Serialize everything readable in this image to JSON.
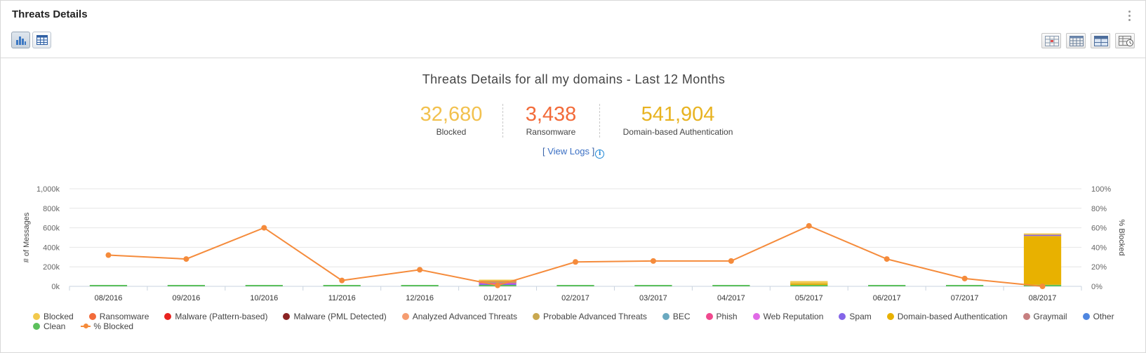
{
  "panel": {
    "title": "Threats Details"
  },
  "chart_header": {
    "title": "Threats Details for all my domains - Last 12 Months",
    "kpis": [
      {
        "value": "32,680",
        "label": "Blocked",
        "color": "#f2c14e"
      },
      {
        "value": "3,438",
        "label": "Ransomware",
        "color": "#f26b3a"
      },
      {
        "value": "541,904",
        "label": "Domain-based Authentication",
        "color": "#e8b321"
      }
    ],
    "view_logs": {
      "open": "[ ",
      "link": "View Logs",
      "close": " ]"
    }
  },
  "icons": {
    "view_chart": "bar-chart-icon",
    "view_table": "table-icon",
    "menu": "kebab-menu-icon",
    "layouts": [
      "layout-grid-icon",
      "layout-table-icon",
      "layout-wide-icon",
      "layout-history-icon"
    ]
  },
  "chart_data": {
    "type": "bar",
    "stacked": true,
    "categories": [
      "08/2016",
      "09/2016",
      "10/2016",
      "11/2016",
      "12/2016",
      "01/2017",
      "02/2017",
      "03/2017",
      "04/2017",
      "05/2017",
      "06/2017",
      "07/2017",
      "08/2017"
    ],
    "ylabel": "# of Messages",
    "ylabel_right": "% Blocked",
    "yticks": [
      "0k",
      "200k",
      "400k",
      "600k",
      "800k",
      "1,000k"
    ],
    "yticks_right": [
      "0%",
      "20%",
      "40%",
      "60%",
      "80%",
      "100%"
    ],
    "ylim": [
      0,
      1000000
    ],
    "ylim_right": [
      0,
      100
    ],
    "grid": true,
    "legend_position": "bottom",
    "series": [
      {
        "name": "Blocked",
        "color": "#f2c94c",
        "type": "bar",
        "values": [
          0,
          0,
          0,
          0,
          0,
          2000,
          0,
          0,
          0,
          24000,
          0,
          0,
          2000
        ]
      },
      {
        "name": "Ransomware",
        "color": "#f26b3a",
        "type": "bar",
        "values": [
          0,
          0,
          0,
          0,
          0,
          3000,
          0,
          0,
          0,
          0,
          0,
          0,
          0
        ]
      },
      {
        "name": "Malware (Pattern-based)",
        "color": "#e8231f",
        "type": "bar",
        "values": [
          0,
          0,
          0,
          0,
          0,
          1000,
          0,
          0,
          0,
          0,
          0,
          0,
          0
        ]
      },
      {
        "name": "Malware (PML Detected)",
        "color": "#8b2323",
        "type": "bar",
        "values": [
          0,
          0,
          0,
          0,
          0,
          0,
          0,
          0,
          0,
          0,
          0,
          0,
          0
        ]
      },
      {
        "name": "Analyzed Advanced Threats",
        "color": "#f59c70",
        "type": "bar",
        "values": [
          0,
          0,
          0,
          0,
          0,
          2000,
          0,
          0,
          0,
          0,
          0,
          0,
          0
        ]
      },
      {
        "name": "Probable Advanced Threats",
        "color": "#c9a84f",
        "type": "bar",
        "values": [
          0,
          0,
          0,
          0,
          0,
          10000,
          0,
          0,
          0,
          4000,
          0,
          0,
          0
        ]
      },
      {
        "name": "BEC",
        "color": "#6aa9c0",
        "type": "bar",
        "values": [
          0,
          0,
          0,
          0,
          0,
          2000,
          0,
          0,
          0,
          0,
          0,
          0,
          0
        ]
      },
      {
        "name": "Phish",
        "color": "#f0488e",
        "type": "bar",
        "values": [
          0,
          0,
          0,
          0,
          0,
          5000,
          0,
          0,
          0,
          0,
          0,
          0,
          0
        ]
      },
      {
        "name": "Web Reputation",
        "color": "#e06ae6",
        "type": "bar",
        "values": [
          0,
          0,
          0,
          0,
          0,
          5000,
          0,
          0,
          0,
          0,
          0,
          0,
          0
        ]
      },
      {
        "name": "Spam",
        "color": "#8465e8",
        "type": "bar",
        "values": [
          0,
          0,
          0,
          0,
          0,
          12000,
          0,
          0,
          0,
          0,
          0,
          0,
          12000
        ]
      },
      {
        "name": "Domain-based Authentication",
        "color": "#e8b100",
        "type": "bar",
        "values": [
          0,
          0,
          0,
          0,
          0,
          0,
          0,
          0,
          0,
          12000,
          0,
          0,
          500000
        ]
      },
      {
        "name": "Graymail",
        "color": "#c77f80",
        "type": "bar",
        "values": [
          0,
          0,
          0,
          0,
          0,
          0,
          0,
          0,
          0,
          0,
          0,
          0,
          0
        ]
      },
      {
        "name": "Other",
        "color": "#4f86e0",
        "type": "bar",
        "values": [
          0,
          0,
          0,
          0,
          0,
          0,
          0,
          0,
          0,
          0,
          0,
          0,
          0
        ]
      },
      {
        "name": "Clean",
        "color": "#5cc05c",
        "type": "bar",
        "values": [
          12000,
          12000,
          12000,
          12000,
          12000,
          14000,
          12000,
          12000,
          12000,
          14000,
          12000,
          12000,
          16000
        ]
      },
      {
        "name": "% Blocked",
        "color": "#f58b3b",
        "type": "line",
        "axis": "right",
        "values": [
          32,
          28,
          60,
          6,
          17,
          1,
          25,
          26,
          26,
          62,
          28,
          8,
          0
        ]
      }
    ]
  }
}
